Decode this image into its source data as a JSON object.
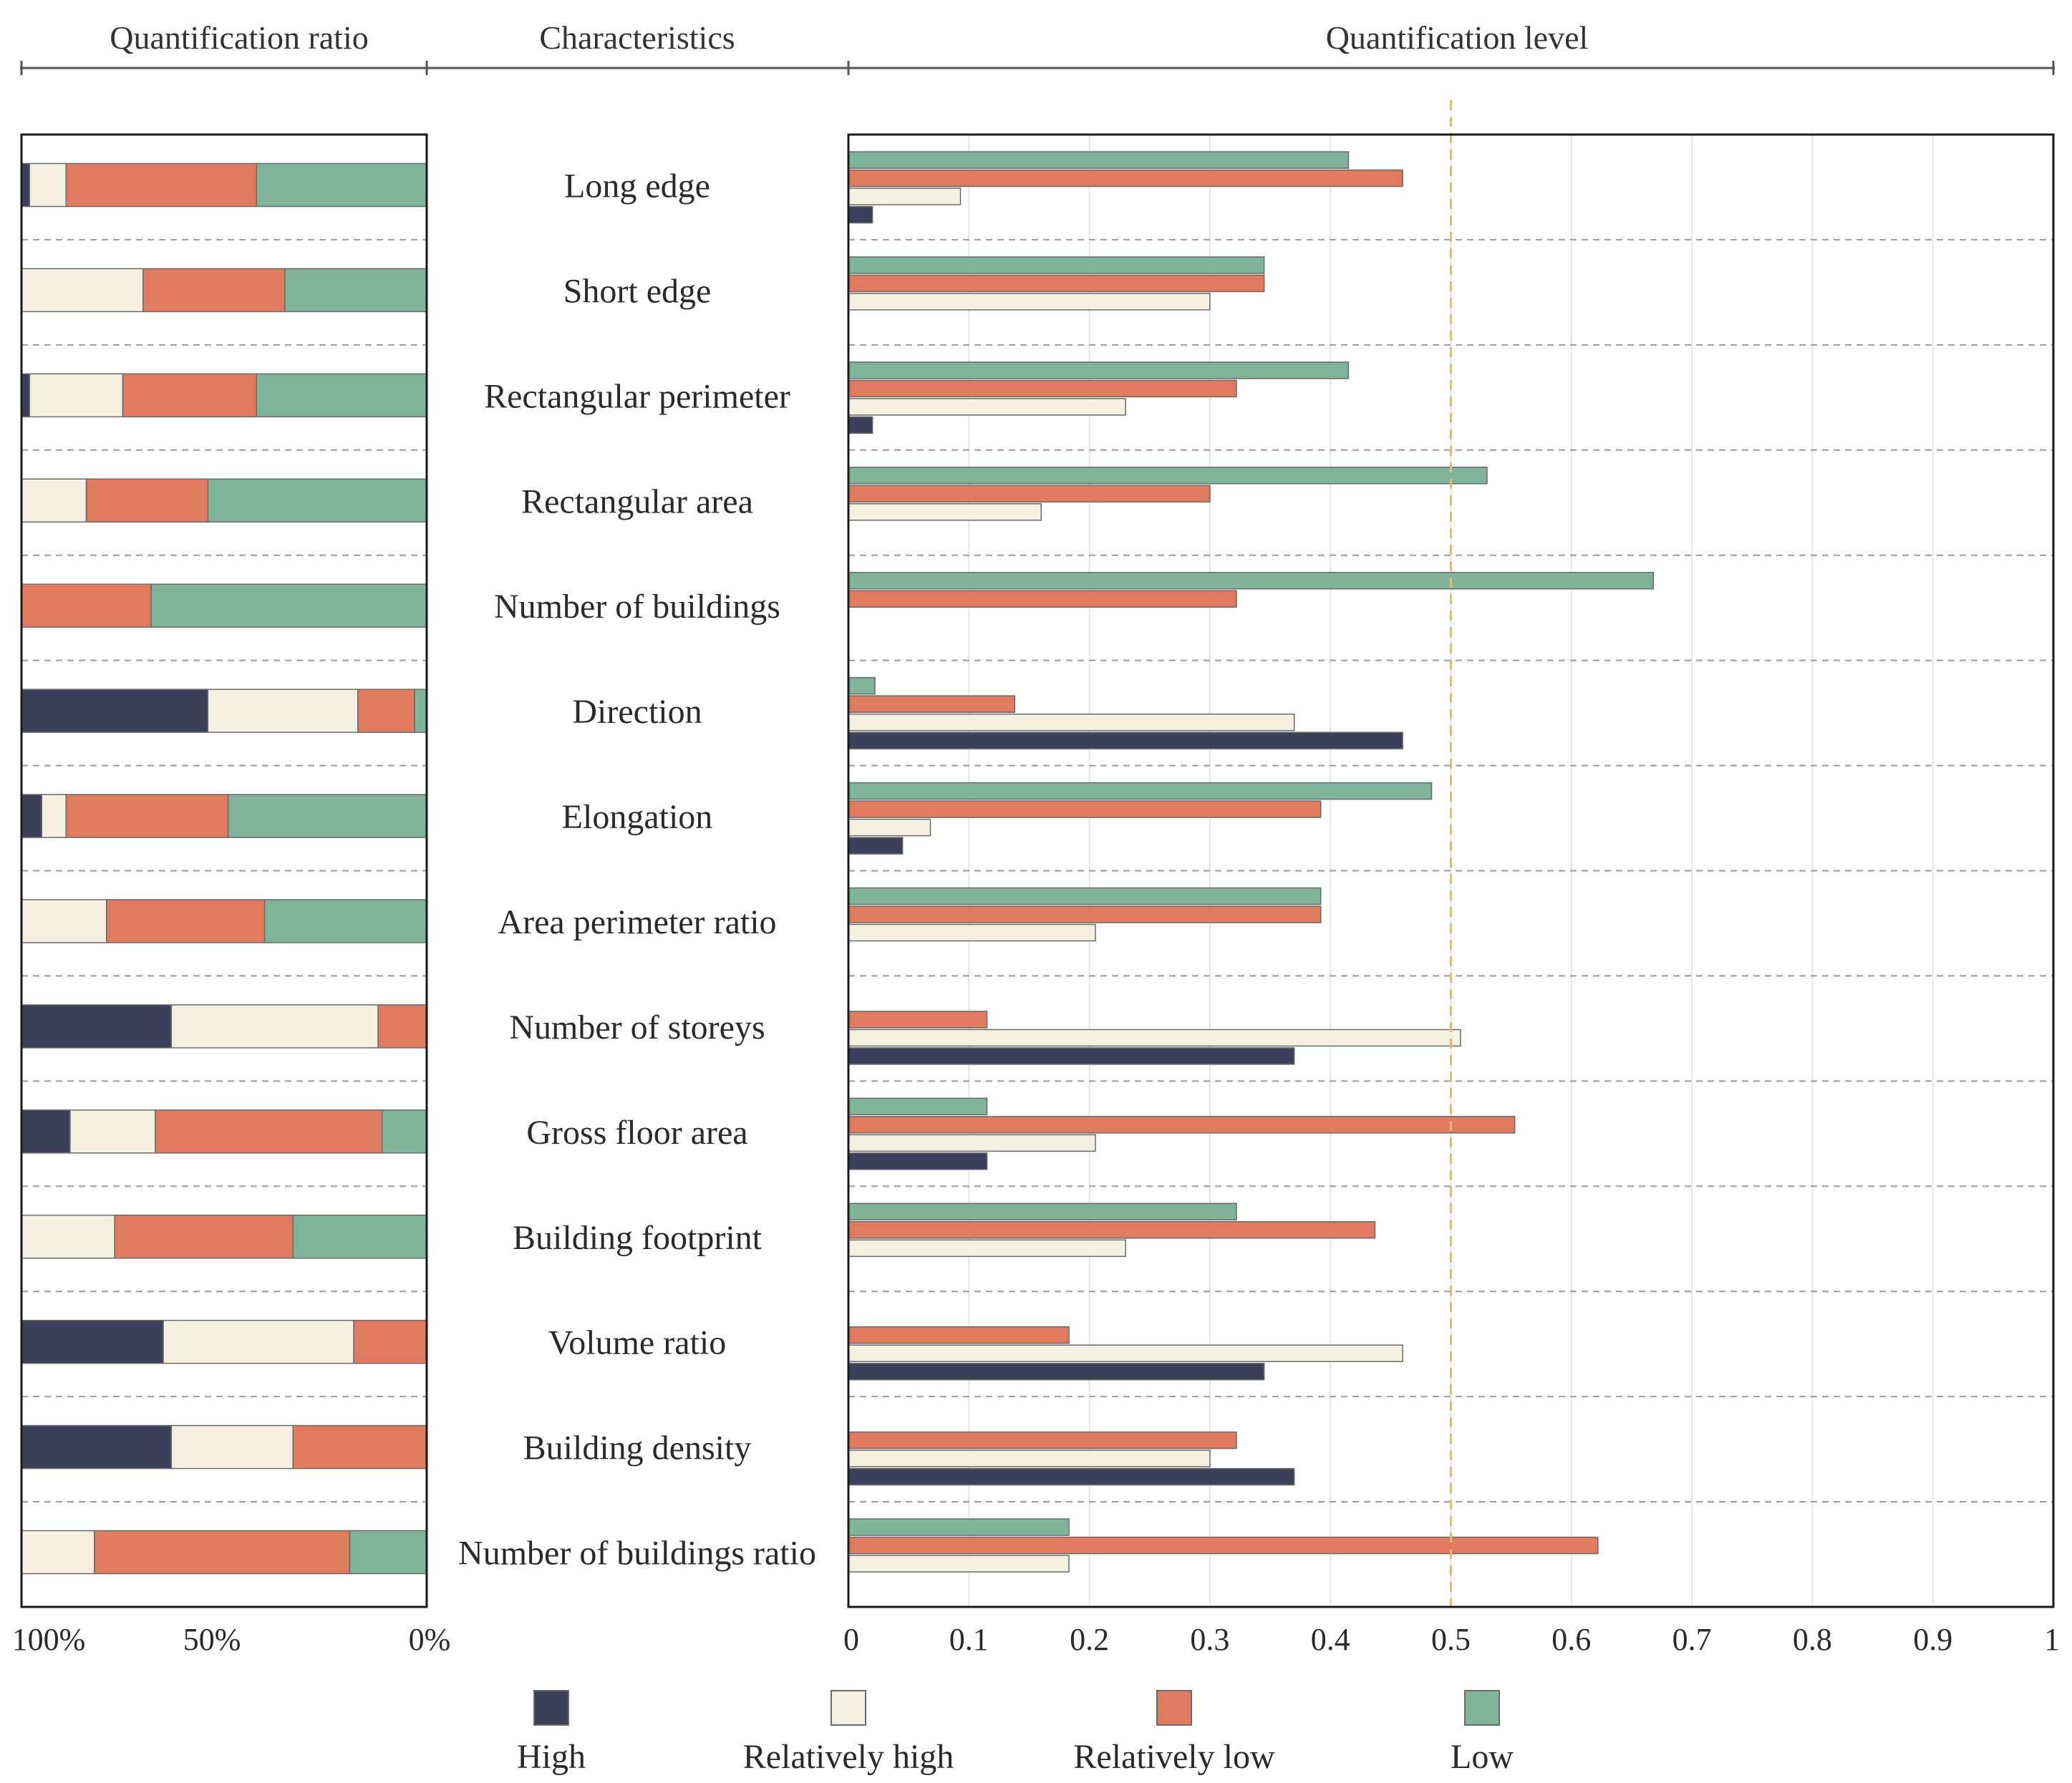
{
  "chart_data": {
    "type": "bar",
    "headers": {
      "left": "Quantification ratio",
      "middle": "Characteristics",
      "right": "Quantification level"
    },
    "categories": [
      "Long edge",
      "Short edge",
      "Rectangular perimeter",
      "Rectangular area",
      "Number of buildings",
      "Direction",
      "Elongation",
      "Area perimeter ratio",
      "Number of storeys",
      "Gross floor area",
      "Building footprint",
      "Volume ratio",
      "Building density",
      "Number of buildings ratio"
    ],
    "series": [
      {
        "name": "High",
        "color": "#3b3f5a",
        "values": [
          0.02,
          0,
          0.02,
          0,
          0,
          0.46,
          0.045,
          0,
          0.37,
          0.115,
          0,
          0.345,
          0.37,
          0
        ]
      },
      {
        "name": "Relatively high",
        "color": "#f5f1e1",
        "values": [
          0.093,
          0.3,
          0.23,
          0.16,
          0,
          0.37,
          0.068,
          0.205,
          0.508,
          0.205,
          0.23,
          0.46,
          0.3,
          0.183
        ]
      },
      {
        "name": "Relatively low",
        "color": "#e07b5f",
        "values": [
          0.46,
          0.345,
          0.322,
          0.3,
          0.322,
          0.138,
          0.392,
          0.392,
          0.115,
          0.553,
          0.437,
          0.183,
          0.322,
          0.622
        ]
      },
      {
        "name": "Low",
        "color": "#7fb39a",
        "values": [
          0.415,
          0.345,
          0.415,
          0.53,
          0.668,
          0.022,
          0.484,
          0.392,
          0,
          0.115,
          0.322,
          0,
          0,
          0.183
        ]
      }
    ],
    "ratio_panel": {
      "title": "Quantification ratio",
      "tick_labels": [
        "100%",
        "50%",
        "0%"
      ],
      "stack_order": [
        "High",
        "Relatively high",
        "Relatively low",
        "Low"
      ],
      "percentages": [
        [
          2,
          9,
          47,
          42
        ],
        [
          0,
          30,
          35,
          35
        ],
        [
          2,
          23,
          33,
          42
        ],
        [
          0,
          16,
          30,
          54
        ],
        [
          0,
          0,
          32,
          68
        ],
        [
          46,
          37,
          14,
          3
        ],
        [
          5,
          6,
          40,
          49
        ],
        [
          0,
          21,
          39,
          40
        ],
        [
          37,
          51,
          12,
          0
        ],
        [
          12,
          21,
          56,
          11
        ],
        [
          0,
          23,
          44,
          33
        ],
        [
          35,
          47,
          18,
          0
        ],
        [
          37,
          30,
          33,
          0
        ],
        [
          0,
          18,
          63,
          19
        ]
      ]
    },
    "level_panel": {
      "title": "Quantification level",
      "xlim": [
        0,
        1
      ],
      "tick_labels": [
        "0",
        "0.1",
        "0.2",
        "0.3",
        "0.4",
        "0.5",
        "0.6",
        "0.7",
        "0.8",
        "0.9",
        "1"
      ],
      "reference_line": 0.5
    },
    "legend": [
      "High",
      "Relatively high",
      "Relatively low",
      "Low"
    ],
    "legend_position": "bottom"
  }
}
